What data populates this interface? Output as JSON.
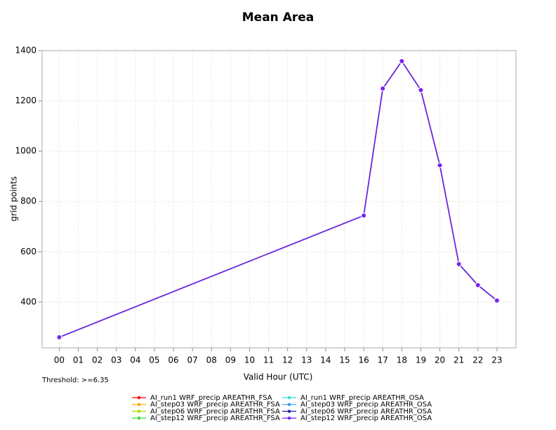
{
  "chart_data": {
    "type": "line",
    "title": "Mean Area",
    "xlabel": "Valid Hour (UTC)",
    "ylabel": "grid points",
    "annotation": "Threshold: >=6.35",
    "x": [
      0,
      16,
      17,
      18,
      19,
      20,
      21,
      22,
      23
    ],
    "xlim": [
      -0.9,
      24
    ],
    "ylim": [
      218,
      1400
    ],
    "xticks": [
      {
        "value": 0,
        "label": "00"
      },
      {
        "value": 1,
        "label": "01"
      },
      {
        "value": 2,
        "label": "02"
      },
      {
        "value": 3,
        "label": "03"
      },
      {
        "value": 4,
        "label": "04"
      },
      {
        "value": 5,
        "label": "05"
      },
      {
        "value": 6,
        "label": "06"
      },
      {
        "value": 7,
        "label": "07"
      },
      {
        "value": 8,
        "label": "08"
      },
      {
        "value": 9,
        "label": "09"
      },
      {
        "value": 10,
        "label": "10"
      },
      {
        "value": 11,
        "label": "11"
      },
      {
        "value": 12,
        "label": "12"
      },
      {
        "value": 13,
        "label": "13"
      },
      {
        "value": 14,
        "label": "14"
      },
      {
        "value": 15,
        "label": "15"
      },
      {
        "value": 16,
        "label": "16"
      },
      {
        "value": 17,
        "label": "17"
      },
      {
        "value": 18,
        "label": "18"
      },
      {
        "value": 19,
        "label": "19"
      },
      {
        "value": 20,
        "label": "20"
      },
      {
        "value": 21,
        "label": "21"
      },
      {
        "value": 22,
        "label": "22"
      },
      {
        "value": 23,
        "label": "23"
      }
    ],
    "yticks": [
      400,
      600,
      800,
      1000,
      1200,
      1400
    ],
    "grid": true,
    "series": [
      {
        "name": "AI_run1 WRF_precip AREATHR_FSA",
        "color": "#ff0000",
        "values": [
          260,
          744,
          1249,
          1358,
          1243,
          944,
          551,
          467,
          406
        ]
      },
      {
        "name": "AI_step03 WRF_precip AREATHR_FSA",
        "color": "#ffa500",
        "values": [
          260,
          744,
          1249,
          1358,
          1243,
          944,
          551,
          467,
          406
        ]
      },
      {
        "name": "AI_step06 WRF_precip AREATHR_FSA",
        "color": "#aadd00",
        "values": [
          260,
          744,
          1249,
          1358,
          1243,
          944,
          551,
          467,
          406
        ]
      },
      {
        "name": "AI_step12 WRF_precip AREATHR_FSA",
        "color": "#33dd33",
        "values": [
          260,
          744,
          1249,
          1358,
          1243,
          944,
          551,
          467,
          406
        ]
      },
      {
        "name": "AI_run1 WRF_precip AREATHR_OSA",
        "color": "#33dddd",
        "values": [
          260,
          744,
          1249,
          1358,
          1243,
          944,
          551,
          467,
          406
        ]
      },
      {
        "name": "AI_step03 WRF_precip AREATHR_OSA",
        "color": "#3399ff",
        "values": [
          260,
          744,
          1249,
          1358,
          1243,
          944,
          551,
          467,
          406
        ]
      },
      {
        "name": "AI_step06 WRF_precip AREATHR_OSA",
        "color": "#2222aa",
        "values": [
          260,
          744,
          1249,
          1358,
          1243,
          944,
          551,
          467,
          406
        ]
      },
      {
        "name": "AI_step12 WRF_precip AREATHR_OSA",
        "color": "#7a22ee",
        "values": [
          260,
          744,
          1249,
          1358,
          1243,
          944,
          551,
          467,
          406
        ]
      }
    ]
  }
}
